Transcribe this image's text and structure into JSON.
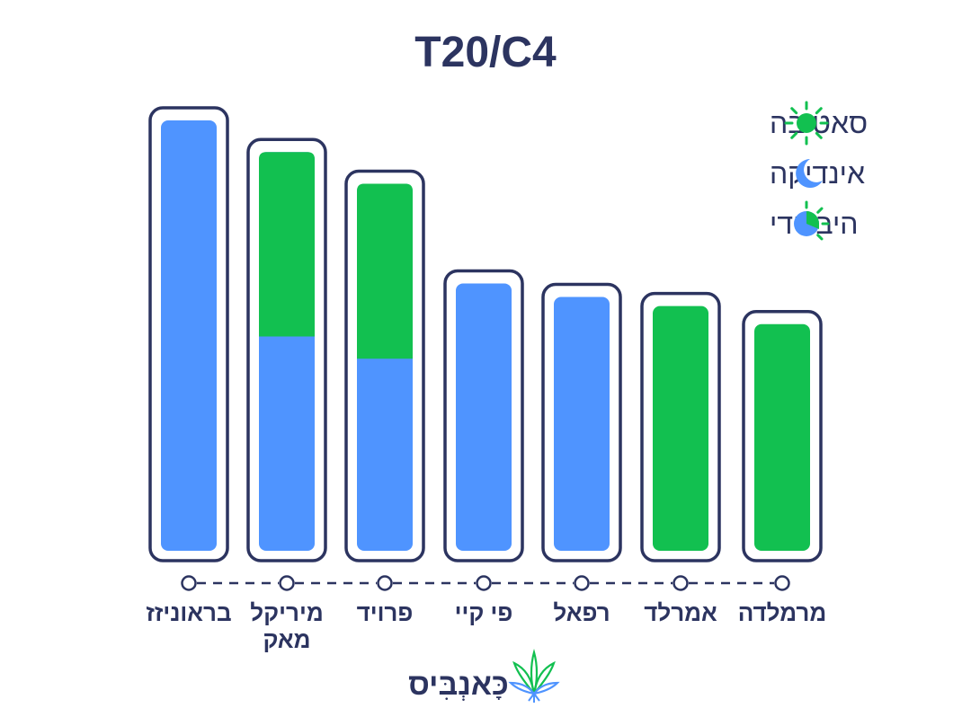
{
  "chart_data": {
    "type": "bar",
    "title": "T20/C4",
    "ylim": [
      0,
      100
    ],
    "grid": false,
    "legend_position": "top-right",
    "colors": {
      "sativa": "#12c050",
      "indica": "#4f94ff",
      "frame": "#2c3460",
      "text": "#2c3460"
    },
    "legend": [
      {
        "key": "sativa",
        "label": "סאטיבה",
        "icon": "sun-icon"
      },
      {
        "key": "indica",
        "label": "אינדיקה",
        "icon": "moon-icon"
      },
      {
        "key": "hybrid",
        "label": "היברידי",
        "icon": "hybrid-sun-moon-icon"
      }
    ],
    "categories": [
      {
        "label": [
          "בראוניזז"
        ],
        "total": 100,
        "indica": 100,
        "sativa": 0
      },
      {
        "label": [
          "מיריקל",
          "מאק"
        ],
        "total": 93,
        "indica": 50,
        "sativa": 43
      },
      {
        "label": [
          "פרויד"
        ],
        "total": 86,
        "indica": 45,
        "sativa": 41
      },
      {
        "label": [
          "פי קיי"
        ],
        "total": 64,
        "indica": 64,
        "sativa": 0
      },
      {
        "label": [
          "רפאל"
        ],
        "total": 61,
        "indica": 61,
        "sativa": 0
      },
      {
        "label": [
          "אמרלד"
        ],
        "total": 59,
        "indica": 0,
        "sativa": 59
      },
      {
        "label": [
          "מרמלדה"
        ],
        "total": 55,
        "indica": 0,
        "sativa": 55
      }
    ]
  },
  "brand": {
    "name": "כָּאנְבִּיס",
    "logo_icon": "cannabis-leaf-icon"
  }
}
